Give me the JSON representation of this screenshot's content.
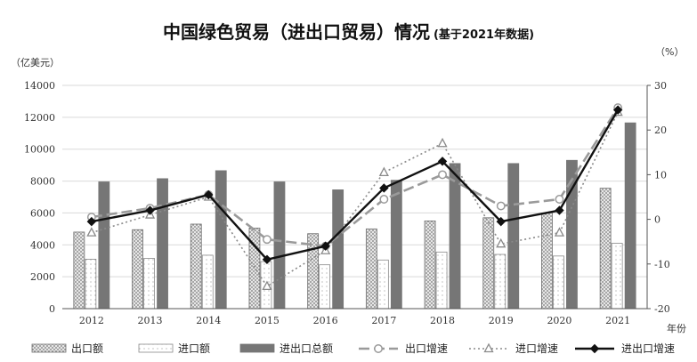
{
  "title": {
    "main": "中国绿色贸易（进出口贸易）情况",
    "sub": "(基于2021年数据)"
  },
  "chart_data": {
    "type": "bar+line",
    "categories": [
      "2012",
      "2013",
      "2014",
      "2015",
      "2016",
      "2017",
      "2018",
      "2019",
      "2020",
      "2021"
    ],
    "left_axis": {
      "unit": "（亿美元）",
      "ylim": [
        0,
        14000
      ],
      "ticks": [
        0,
        2000,
        4000,
        6000,
        8000,
        10000,
        12000,
        14000
      ]
    },
    "right_axis": {
      "unit": "（%）",
      "ylim": [
        -20,
        30
      ],
      "ticks": [
        -20,
        -10,
        0,
        10,
        20,
        30
      ]
    },
    "x_axis_unit": "年份",
    "grid": "horizontal",
    "legend_position": "bottom",
    "bar_series": [
      {
        "name": "出口额",
        "values": [
          4800,
          4950,
          5300,
          5050,
          4700,
          5000,
          5500,
          5700,
          6000,
          7550
        ]
      },
      {
        "name": "进口额",
        "values": [
          3100,
          3150,
          3350,
          2950,
          2750,
          3050,
          3550,
          3400,
          3300,
          4100
        ]
      },
      {
        "name": "进出口总额",
        "values": [
          7950,
          8150,
          8650,
          7950,
          7450,
          8050,
          9100,
          9100,
          9300,
          11650
        ]
      }
    ],
    "line_series": [
      {
        "name": "出口增速",
        "values": [
          0.5,
          2.5,
          5.5,
          -4.5,
          -6,
          4.5,
          10,
          3,
          4.5,
          25
        ]
      },
      {
        "name": "进口增速",
        "values": [
          -3,
          1,
          5,
          -15,
          -7,
          10.5,
          17,
          -5.5,
          -3,
          24
        ]
      },
      {
        "name": "进出口增速",
        "values": [
          -0.5,
          2,
          5.5,
          -9,
          -6,
          7,
          13,
          -0.5,
          2,
          24.5
        ]
      }
    ]
  },
  "colors": {
    "export_bar_fill": "#c8c8c8",
    "import_bar_fill": "#ffffff",
    "total_bar_fill": "#767676",
    "export_line": "#9a9a9a",
    "import_line": "#8a8a8a",
    "total_line": "#111111",
    "grid": "#d9d9d9"
  }
}
